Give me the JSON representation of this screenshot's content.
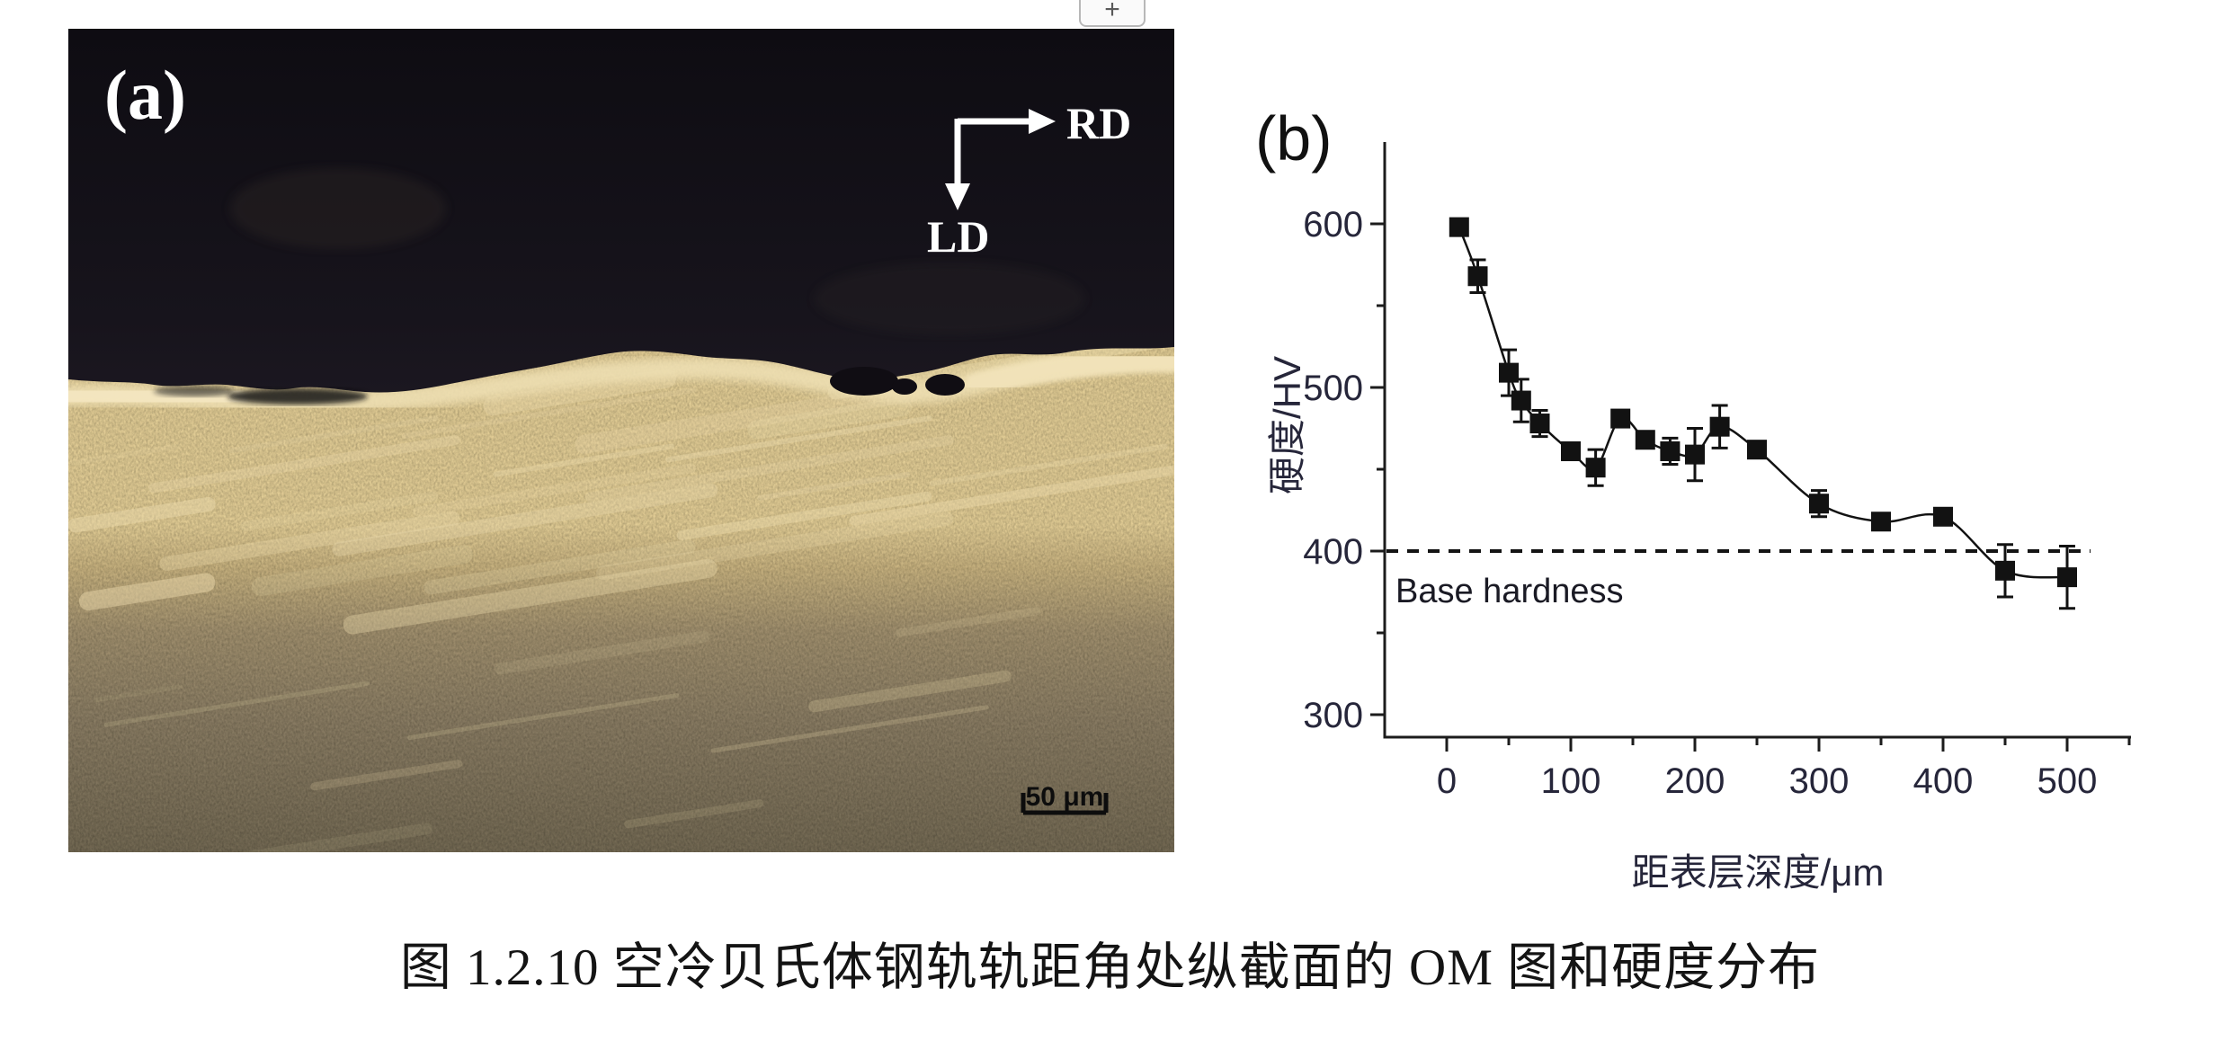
{
  "viewer": {
    "plus_button_label": "+"
  },
  "figure": {
    "panel_a": {
      "label": "(a)",
      "rd_label": "RD",
      "ld_label": "LD",
      "scale_bar_label": "50 μm"
    },
    "panel_b": {
      "label": "(b)"
    },
    "caption": "图 1.2.10 空冷贝氏体钢轨轨距角处纵截面的 OM 图和硬度分布"
  },
  "chart_data": {
    "type": "line",
    "title": "",
    "xlabel": "距表层深度/μm",
    "ylabel": "硬度/HV",
    "x": [
      10,
      25,
      50,
      60,
      75,
      100,
      120,
      140,
      160,
      180,
      200,
      220,
      250,
      300,
      350,
      400,
      450,
      500
    ],
    "series": [
      {
        "name": "hardness",
        "values": [
          598,
          568,
          509,
          492,
          478,
          461,
          451,
          481,
          468,
          461,
          459,
          476,
          462,
          429,
          418,
          421,
          388,
          384
        ],
        "errors": [
          4,
          10,
          14,
          13,
          8,
          5,
          11,
          3,
          4,
          8,
          16,
          13,
          4,
          8,
          5,
          3,
          16,
          19
        ]
      }
    ],
    "xticks": [
      0,
      100,
      200,
      300,
      400,
      500
    ],
    "yticks": [
      300,
      400,
      500,
      600
    ],
    "xlim": [
      -50,
      550
    ],
    "ylim": [
      286,
      650
    ],
    "reference_line": {
      "value": 400,
      "label": "Base hardness",
      "style": "dashed"
    },
    "marker": "square",
    "legend": "none",
    "grid": false
  },
  "colors": {
    "axis": "#1c1c1c",
    "tick_label": "#26263a",
    "series": "#121212",
    "reference_line": "#141414",
    "micrograph_resin": "#14111a",
    "micrograph_bright_band": "#eedfb2",
    "page_background": "#ffffff"
  }
}
